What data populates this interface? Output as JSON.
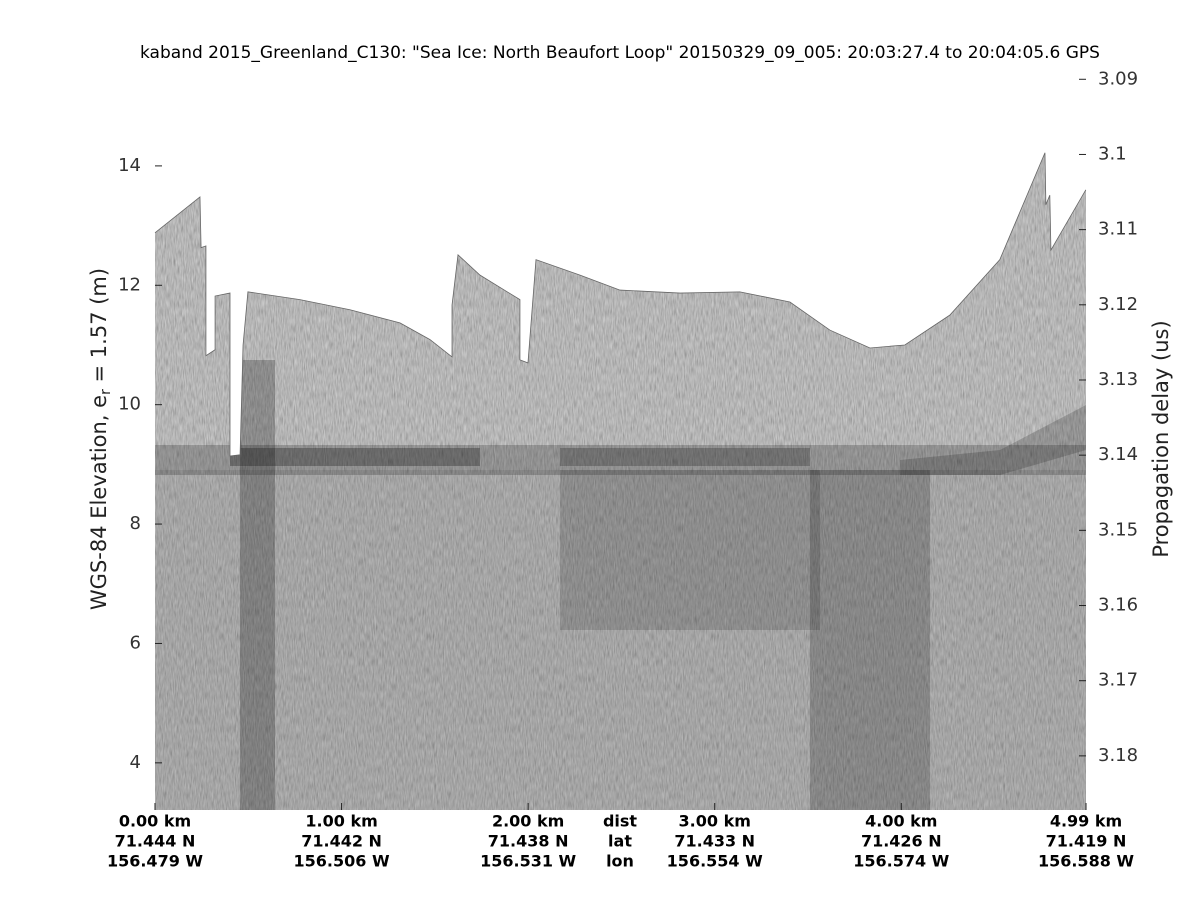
{
  "chart_data": {
    "type": "echogram",
    "title": "kaband 2015_Greenland_C130: \"Sea Ice: North Beaufort Loop\"  20150329_09_005: 20:03:27.4 to 20:04:05.6 GPS",
    "ylabel": [
      "WGS-84 Elevation, e",
      "r",
      " = 1.57 (m)"
    ],
    "y2label": "Propagation delay (us)",
    "xlim": [
      0,
      4.99
    ],
    "xticks": [
      {
        "value": 0,
        "label": "0.00 km"
      },
      {
        "value": 1,
        "label": "1.00 km"
      },
      {
        "value": 2,
        "label": "2.00 km"
      },
      {
        "value": 3,
        "label": "3.00 km"
      },
      {
        "value": 4,
        "label": "4.00 km"
      },
      {
        "value": 4.99,
        "label": "4.99 km"
      }
    ],
    "lat_labels": [
      "71.444 N",
      "71.442 N",
      "71.438 N",
      "71.433 N",
      "71.426 N",
      "71.419 N"
    ],
    "lon_labels": [
      "156.479 W",
      "156.506 W",
      "156.531 W",
      "156.554 W",
      "156.574 W",
      "156.588 W"
    ],
    "row_labels": [
      "dist",
      "lat",
      "lon"
    ],
    "ylim": [
      3.21,
      15.64
    ],
    "yticks": [
      4,
      6,
      8,
      10,
      12,
      14
    ],
    "y2lim": [
      3.1872,
      3.0885
    ],
    "y2ticks": [
      3.09,
      3.1,
      3.11,
      3.12,
      3.13,
      3.14,
      3.15,
      3.16,
      3.17,
      3.18
    ],
    "surface": {
      "x": [
        0,
        0.241,
        0.247,
        0.273,
        0.273,
        0.322,
        0.322,
        0.402,
        0.402,
        0.456,
        0.472,
        0.498,
        0.777,
        1.045,
        1.313,
        1.474,
        1.592,
        1.592,
        1.624,
        1.742,
        1.956,
        1.956,
        1.999,
        2.042,
        2.278,
        2.492,
        2.814,
        3.135,
        3.403,
        3.617,
        3.832,
        4.019,
        4.26,
        4.528,
        4.77,
        4.775,
        4.796,
        4.802,
        4.989
      ],
      "y": [
        12.88,
        13.48,
        12.63,
        12.66,
        10.82,
        10.92,
        11.82,
        11.87,
        9.14,
        9.16,
        11.0,
        11.89,
        11.76,
        11.59,
        11.37,
        11.09,
        10.8,
        11.67,
        12.51,
        12.17,
        11.76,
        10.75,
        10.7,
        12.43,
        12.17,
        11.92,
        11.87,
        11.89,
        11.72,
        11.25,
        10.95,
        11.0,
        11.5,
        12.43,
        14.22,
        13.35,
        13.51,
        12.59,
        13.6
      ]
    }
  }
}
